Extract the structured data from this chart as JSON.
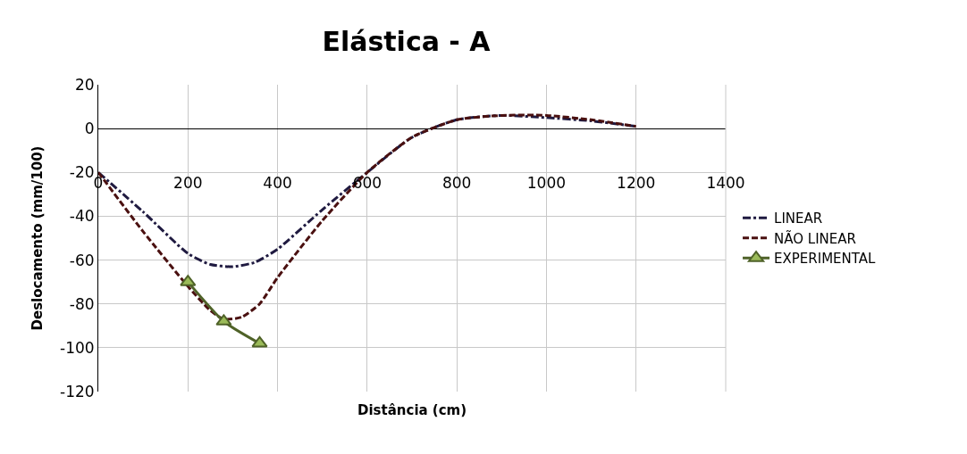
{
  "chart_data": {
    "type": "line",
    "title": "Elástica - A",
    "xlabel": "Distância (cm)",
    "ylabel": "Deslocamento (mm/100)",
    "xlim": [
      0,
      1400
    ],
    "xticks": [
      0,
      200,
      400,
      600,
      800,
      1000,
      1200,
      1400
    ],
    "ylim": [
      -120,
      20
    ],
    "yticks": [
      -120,
      -100,
      -80,
      -60,
      -40,
      -20,
      0,
      20
    ],
    "grid": true,
    "legend": "right",
    "series": [
      {
        "name": "LINEAR",
        "color": "#1f1a40",
        "line_style": "dashdot",
        "marker": "none",
        "x": [
          0,
          100,
          200,
          250,
          300,
          350,
          400,
          500,
          600,
          700,
          800,
          900,
          1000,
          1100,
          1200
        ],
        "values": [
          -20,
          -38,
          -57,
          -62,
          -63,
          -61,
          -55,
          -37,
          -20,
          -4,
          4,
          6,
          5,
          3.5,
          1
        ]
      },
      {
        "name": "NÃO LINEAR",
        "color": "#4a1010",
        "line_style": "dashed",
        "marker": "none",
        "x": [
          0,
          100,
          200,
          250,
          280,
          320,
          360,
          400,
          500,
          600,
          700,
          800,
          900,
          1000,
          1100,
          1200
        ],
        "values": [
          -20,
          -47,
          -72,
          -83,
          -87,
          -86,
          -80,
          -68,
          -42,
          -20,
          -4,
          4,
          6,
          6,
          4,
          1
        ]
      },
      {
        "name": "EXPERIMENTAL",
        "color": "#4f6228",
        "line_style": "solid",
        "marker": "triangle",
        "x": [
          200,
          280,
          360
        ],
        "values": [
          -70,
          -88,
          -98
        ]
      }
    ]
  }
}
